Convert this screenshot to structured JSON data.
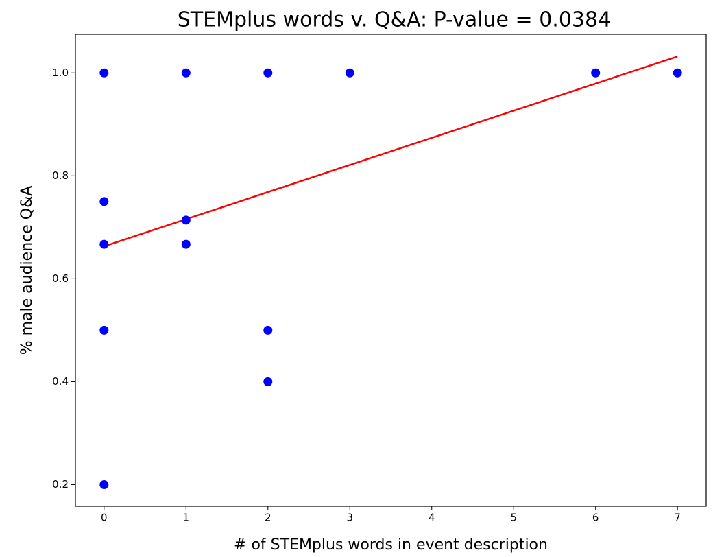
{
  "chart_data": {
    "type": "scatter",
    "title": "STEMplus words v. Q&A: P-value = 0.0384",
    "x_label": "# of STEMplus words in event description",
    "y_label": "% male audience Q&A",
    "series": [
      {
        "type": "scatter",
        "color": "#0000ff",
        "x": [
          0,
          1,
          2,
          3,
          6,
          7,
          0,
          0,
          1,
          1,
          0,
          2,
          2,
          0
        ],
        "values": [
          1,
          1,
          1,
          1,
          1,
          1,
          0.75,
          0.667,
          0.714,
          0.667,
          0.5,
          0.5,
          0.4,
          0.2
        ]
      },
      {
        "type": "line",
        "color": "#ff0000",
        "x": [
          0,
          7
        ],
        "values": [
          0.663,
          1.032
        ]
      }
    ],
    "xlim": [
      -0.35,
      7.35
    ],
    "ylim": [
      0.158,
      1.075
    ],
    "xticks": [
      0,
      1,
      2,
      3,
      4,
      5,
      6,
      7
    ],
    "yticks": [
      0.2,
      0.4,
      0.6,
      0.8,
      {
        "value": 1,
        "label": "1.0"
      }
    ],
    "grid": false
  }
}
